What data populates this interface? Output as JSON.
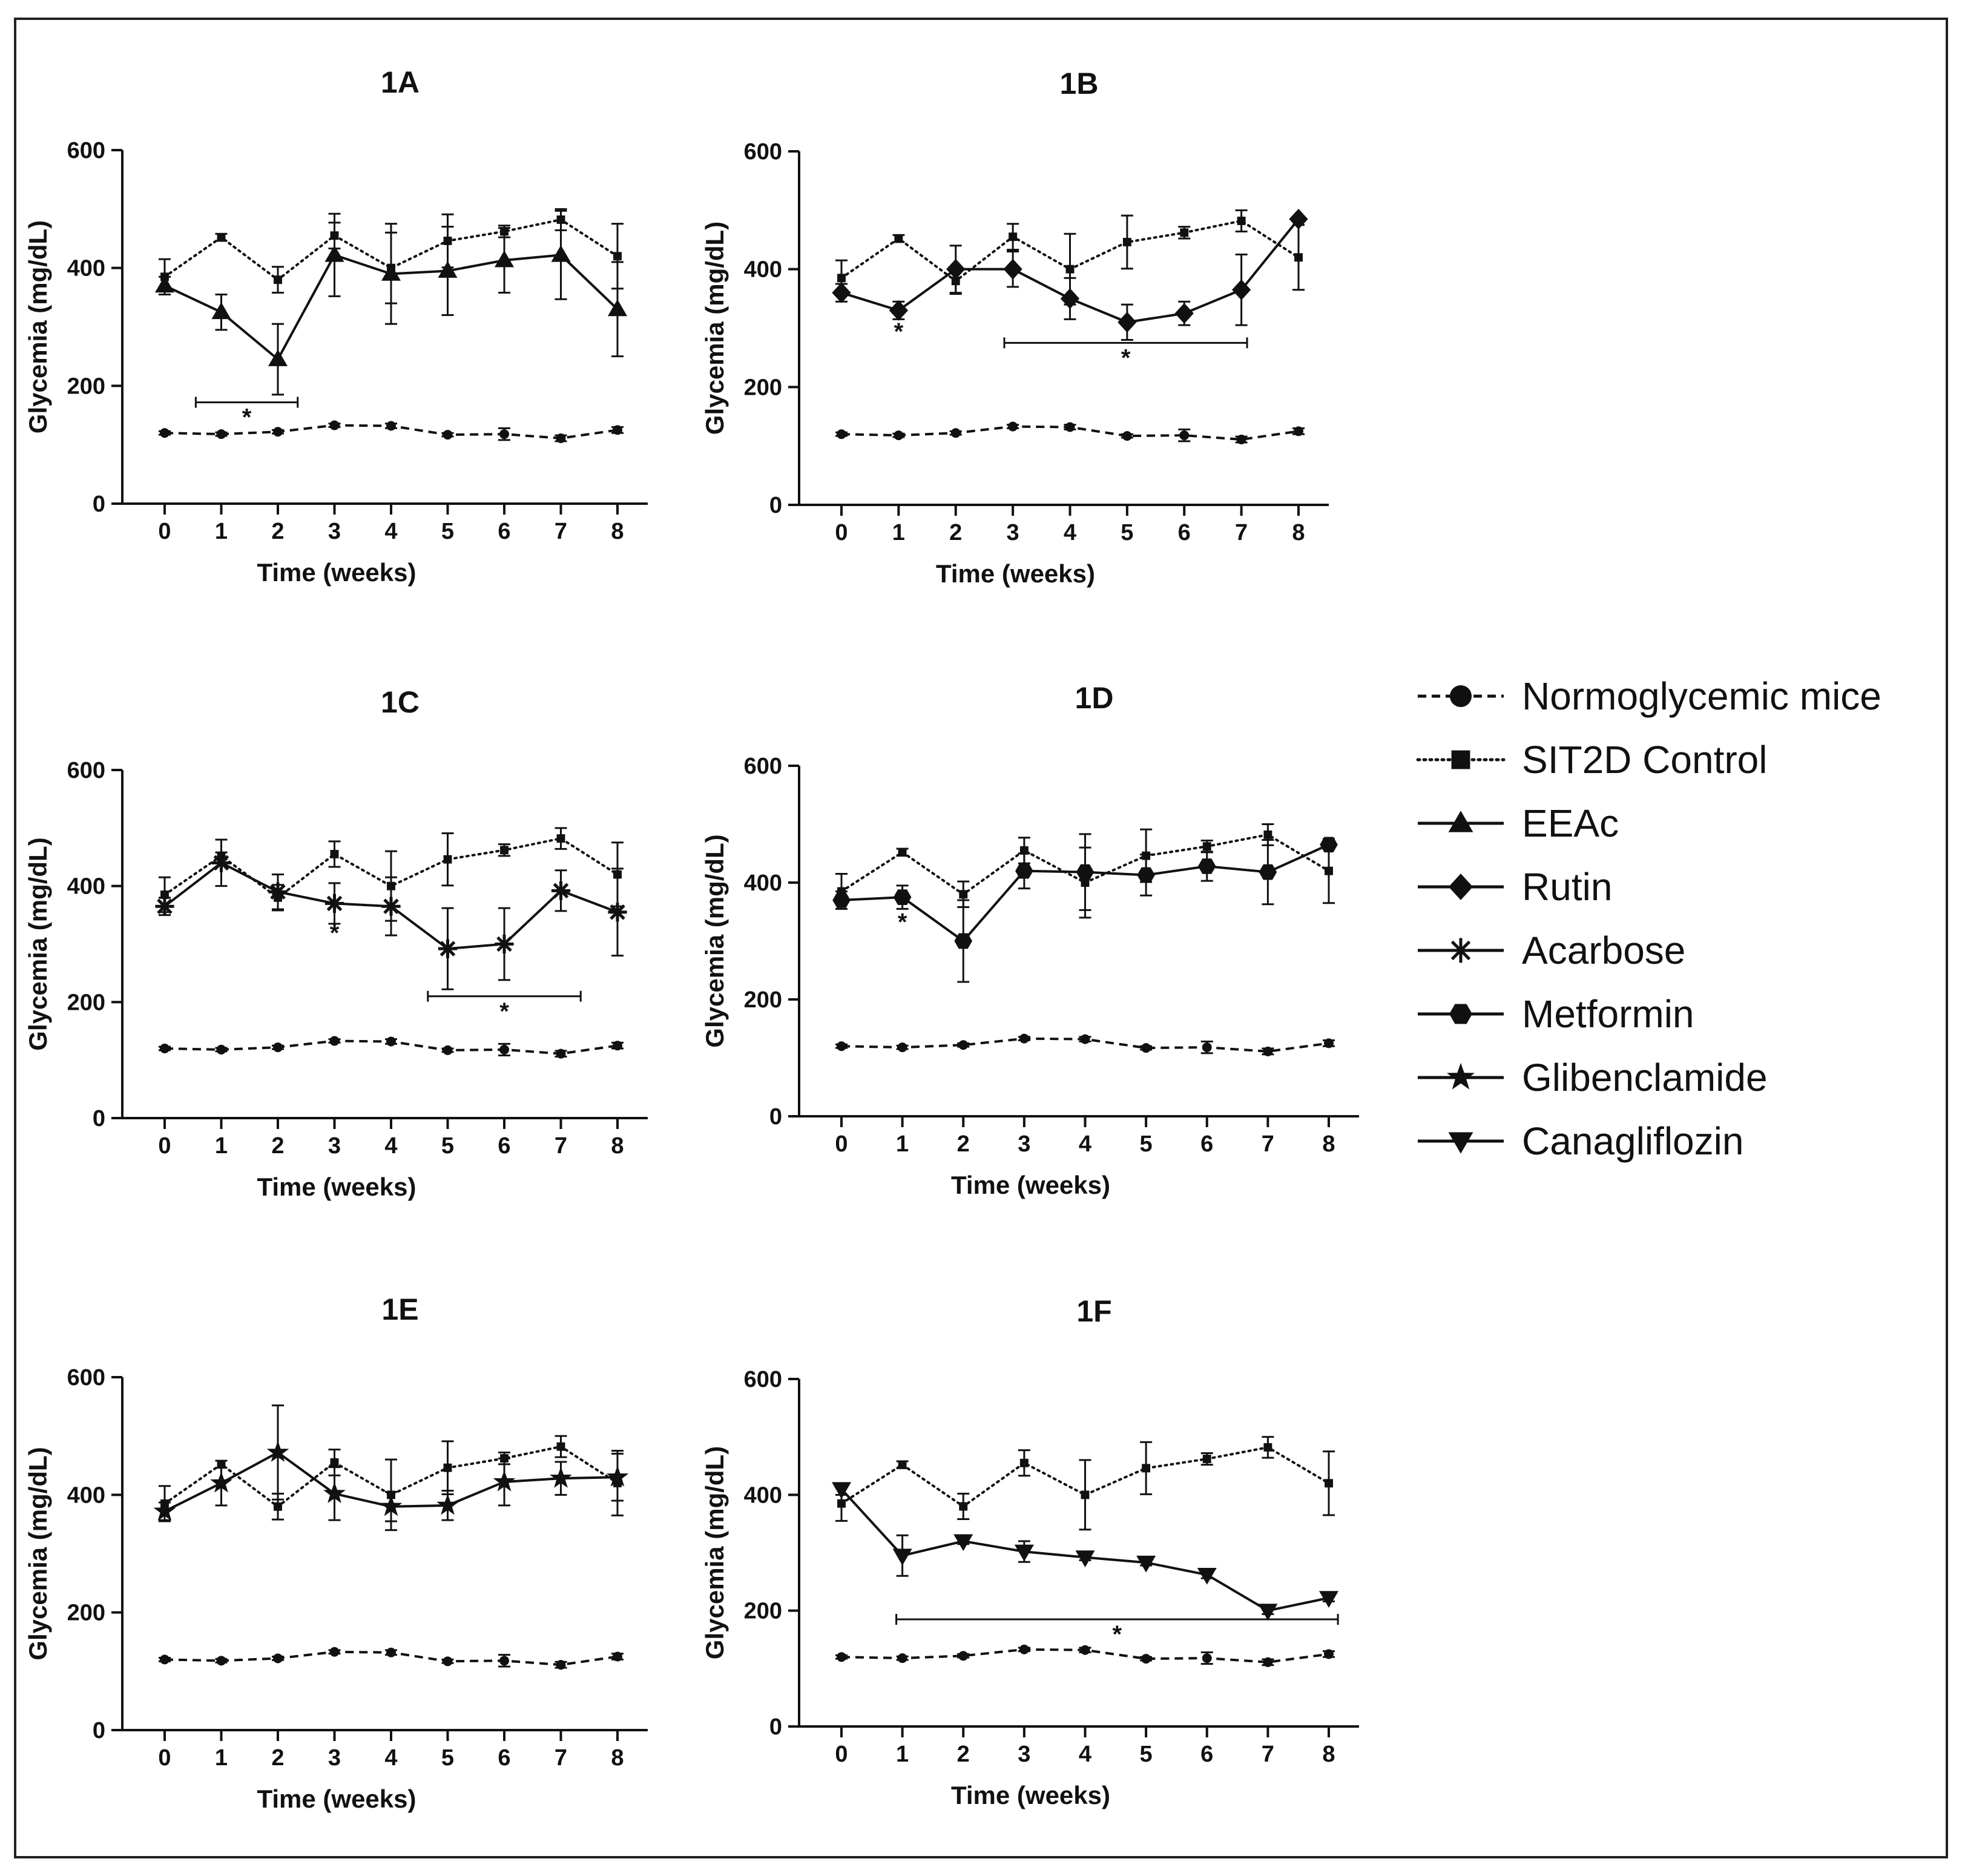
{
  "figure": {
    "legend": [
      {
        "name": "Normoglycemic mice",
        "marker": "circle",
        "dash": "dashed"
      },
      {
        "name": "SIT2D Control",
        "marker": "square",
        "dash": "dotted"
      },
      {
        "name": "EEAc",
        "marker": "triangle",
        "dash": "solid"
      },
      {
        "name": "Rutin",
        "marker": "diamond",
        "dash": "solid"
      },
      {
        "name": "Acarbose",
        "marker": "asterisk",
        "dash": "solid"
      },
      {
        "name": "Metformin",
        "marker": "hexagon",
        "dash": "solid"
      },
      {
        "name": "Glibenclamide",
        "marker": "star",
        "dash": "solid"
      },
      {
        "name": "Canagliflozin",
        "marker": "triangle-down",
        "dash": "solid"
      }
    ],
    "colors": {
      "ink": "#111111",
      "frame": "#222222",
      "background": "#ffffff"
    }
  },
  "chart_data": [
    {
      "type": "line",
      "title": "1A",
      "xlabel": "Time (weeks)",
      "ylabel": "Glycemia (mg/dL)",
      "x": [
        0,
        1,
        2,
        3,
        4,
        5,
        6,
        7,
        8
      ],
      "ylim": [
        0,
        600
      ],
      "yticks": [
        0,
        200,
        400,
        600
      ],
      "series": [
        {
          "name": "Normoglycemic mice",
          "values": [
            120,
            118,
            122,
            133,
            132,
            117,
            118,
            111,
            125
          ],
          "errors": [
            3,
            3,
            3,
            3,
            4,
            3,
            10,
            5,
            5
          ]
        },
        {
          "name": "SIT2D Control",
          "values": [
            385,
            452,
            380,
            455,
            400,
            446,
            462,
            482,
            420
          ],
          "errors": [
            30,
            6,
            22,
            22,
            60,
            45,
            10,
            18,
            55
          ]
        },
        {
          "name": "EEAc",
          "values": [
            370,
            325,
            245,
            422,
            390,
            395,
            413,
            422,
            330
          ],
          "errors": [
            15,
            30,
            60,
            70,
            85,
            75,
            55,
            75,
            80
          ]
        }
      ],
      "annotations": [
        {
          "text": "*",
          "x_from": 0.55,
          "x_to": 2.35,
          "y": 172
        }
      ]
    },
    {
      "type": "line",
      "title": "1B",
      "xlabel": "Time (weeks)",
      "ylabel": "Glycemia (mg/dL)",
      "x": [
        0,
        1,
        2,
        3,
        4,
        5,
        6,
        7,
        8
      ],
      "ylim": [
        0,
        600
      ],
      "yticks": [
        0,
        200,
        400,
        600
      ],
      "series": [
        {
          "name": "Normoglycemic mice",
          "values": [
            120,
            118,
            122,
            133,
            132,
            117,
            118,
            111,
            125
          ],
          "errors": [
            3,
            3,
            3,
            3,
            4,
            3,
            10,
            5,
            5
          ]
        },
        {
          "name": "SIT2D Control",
          "values": [
            385,
            452,
            380,
            455,
            400,
            446,
            462,
            482,
            420
          ],
          "errors": [
            30,
            6,
            22,
            22,
            60,
            45,
            10,
            18,
            55
          ]
        },
        {
          "name": "Rutin",
          "values": [
            360,
            330,
            400,
            400,
            350,
            310,
            325,
            365,
            485
          ],
          "errors": [
            15,
            15,
            40,
            30,
            35,
            30,
            20,
            60,
            5
          ]
        }
      ],
      "annotations": [
        {
          "text": "*",
          "x": 1,
          "y": 295
        },
        {
          "text": "*",
          "x_from": 2.85,
          "x_to": 7.1,
          "y": 275
        }
      ]
    },
    {
      "type": "line",
      "title": "1C",
      "xlabel": "Time (weeks)",
      "ylabel": "Glycemia (mg/dL)",
      "x": [
        0,
        1,
        2,
        3,
        4,
        5,
        6,
        7,
        8
      ],
      "ylim": [
        0,
        600
      ],
      "yticks": [
        0,
        200,
        400,
        600
      ],
      "series": [
        {
          "name": "Normoglycemic mice",
          "values": [
            120,
            118,
            122,
            133,
            132,
            117,
            118,
            111,
            125
          ],
          "errors": [
            3,
            3,
            3,
            3,
            4,
            3,
            10,
            5,
            5
          ]
        },
        {
          "name": "SIT2D Control",
          "values": [
            385,
            452,
            380,
            455,
            400,
            446,
            462,
            482,
            420
          ],
          "errors": [
            30,
            6,
            22,
            22,
            60,
            45,
            10,
            18,
            55
          ]
        },
        {
          "name": "Acarbose",
          "values": [
            365,
            440,
            390,
            370,
            365,
            292,
            300,
            392,
            355
          ],
          "errors": [
            15,
            40,
            30,
            35,
            50,
            70,
            62,
            35,
            75
          ]
        }
      ],
      "annotations": [
        {
          "text": "*",
          "x": 3,
          "y": 320
        },
        {
          "text": "*",
          "x_from": 4.65,
          "x_to": 7.35,
          "y": 210
        }
      ]
    },
    {
      "type": "line",
      "title": "1D",
      "xlabel": "Time (weeks)",
      "ylabel": "Glycemia (mg/dL)",
      "x": [
        0,
        1,
        2,
        3,
        4,
        5,
        6,
        7,
        8
      ],
      "ylim": [
        0,
        600
      ],
      "yticks": [
        0,
        200,
        400,
        600
      ],
      "series": [
        {
          "name": "Normoglycemic mice",
          "values": [
            120,
            118,
            122,
            133,
            132,
            117,
            118,
            111,
            125
          ],
          "errors": [
            3,
            3,
            3,
            3,
            4,
            3,
            10,
            5,
            5
          ]
        },
        {
          "name": "SIT2D Control",
          "values": [
            385,
            452,
            380,
            455,
            400,
            446,
            462,
            482,
            420
          ],
          "errors": [
            30,
            6,
            22,
            22,
            60,
            45,
            10,
            18,
            55
          ]
        },
        {
          "name": "Metformin",
          "values": [
            370,
            375,
            300,
            420,
            418,
            413,
            428,
            418,
            465
          ],
          "errors": [
            15,
            20,
            70,
            30,
            65,
            35,
            25,
            55,
            5
          ]
        }
      ],
      "annotations": [
        {
          "text": "*",
          "x": 1,
          "y": 333
        }
      ]
    },
    {
      "type": "line",
      "title": "1E",
      "xlabel": "Time (weeks)",
      "ylabel": "Glycemia (mg/dL)",
      "x": [
        0,
        1,
        2,
        3,
        4,
        5,
        6,
        7,
        8
      ],
      "ylim": [
        0,
        600
      ],
      "yticks": [
        0,
        200,
        400,
        600
      ],
      "series": [
        {
          "name": "Normoglycemic mice",
          "values": [
            120,
            118,
            122,
            133,
            132,
            117,
            118,
            111,
            125
          ],
          "errors": [
            3,
            3,
            3,
            3,
            4,
            3,
            10,
            5,
            5
          ]
        },
        {
          "name": "SIT2D Control",
          "values": [
            385,
            452,
            380,
            455,
            400,
            446,
            462,
            482,
            420
          ],
          "errors": [
            30,
            6,
            22,
            22,
            60,
            45,
            10,
            18,
            55
          ]
        },
        {
          "name": "Glibenclamide",
          "values": [
            372,
            420,
            472,
            402,
            380,
            382,
            422,
            428,
            430
          ],
          "errors": [
            15,
            38,
            80,
            45,
            25,
            25,
            40,
            28,
            40
          ]
        }
      ],
      "annotations": []
    },
    {
      "type": "line",
      "title": "1F",
      "xlabel": "Time (weeks)",
      "ylabel": "Glycemia (mg/dL)",
      "x": [
        0,
        1,
        2,
        3,
        4,
        5,
        6,
        7,
        8
      ],
      "ylim": [
        0,
        600
      ],
      "yticks": [
        0,
        200,
        400,
        600
      ],
      "series": [
        {
          "name": "Normoglycemic mice",
          "values": [
            120,
            118,
            122,
            133,
            132,
            117,
            118,
            111,
            125
          ],
          "errors": [
            3,
            3,
            3,
            3,
            4,
            3,
            10,
            5,
            5
          ]
        },
        {
          "name": "SIT2D Control",
          "values": [
            385,
            452,
            380,
            455,
            400,
            446,
            462,
            482,
            420
          ],
          "errors": [
            30,
            6,
            22,
            22,
            60,
            45,
            10,
            18,
            55
          ]
        },
        {
          "name": "Canagliflozin",
          "values": [
            410,
            295,
            320,
            302,
            292,
            283,
            262,
            200,
            222
          ],
          "errors": [
            10,
            35,
            5,
            18,
            5,
            5,
            6,
            6,
            6
          ]
        }
      ],
      "annotations": [
        {
          "text": "*",
          "x_from": 0.9,
          "x_to": 8.15,
          "y": 185
        }
      ]
    }
  ]
}
